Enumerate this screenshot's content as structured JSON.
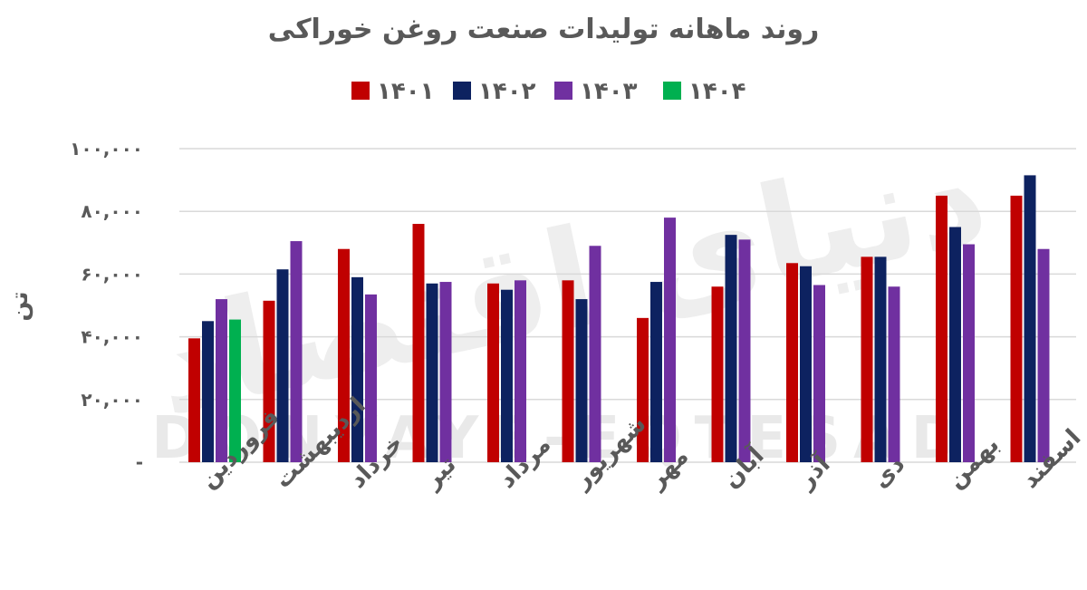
{
  "chart_data": {
    "type": "bar",
    "title": "روند ماهانه تولیدات صنعت روغن خوراکی",
    "ylabel": "تن",
    "xlabel": "",
    "ylim": [
      0,
      100000
    ],
    "yticks": [
      {
        "value": 0,
        "label": "-"
      },
      {
        "value": 20000,
        "label": "۲۰,۰۰۰"
      },
      {
        "value": 40000,
        "label": "۴۰,۰۰۰"
      },
      {
        "value": 60000,
        "label": "۶۰,۰۰۰"
      },
      {
        "value": 80000,
        "label": "۸۰,۰۰۰"
      },
      {
        "value": 100000,
        "label": "۱۰۰,۰۰۰"
      }
    ],
    "grid": true,
    "legend_position": "top",
    "categories": [
      "فروردین",
      "اردیبهشت",
      "خرداد",
      "تیر",
      "مرداد",
      "شهریور",
      "مهر",
      "آبان",
      "آذر",
      "دی",
      "بهمن",
      "اسفند"
    ],
    "series": [
      {
        "name": "۱۴۰۱",
        "color": "#c00000",
        "values": [
          39500,
          51500,
          68000,
          76000,
          57000,
          58000,
          46000,
          56000,
          63500,
          65500,
          85000,
          85000
        ]
      },
      {
        "name": "۱۴۰۲",
        "color": "#0d2260",
        "values": [
          45000,
          61500,
          59000,
          57000,
          55000,
          52000,
          57500,
          72500,
          62500,
          65500,
          75000,
          91500
        ]
      },
      {
        "name": "۱۴۰۳",
        "color": "#7030a0",
        "values": [
          52000,
          70500,
          53500,
          57500,
          58000,
          69000,
          78000,
          71000,
          56500,
          56000,
          69500,
          68000
        ]
      },
      {
        "name": "۱۴۰۴",
        "color": "#00b050",
        "values": [
          45500,
          null,
          null,
          null,
          null,
          null,
          null,
          null,
          null,
          null,
          null,
          null
        ]
      }
    ]
  }
}
